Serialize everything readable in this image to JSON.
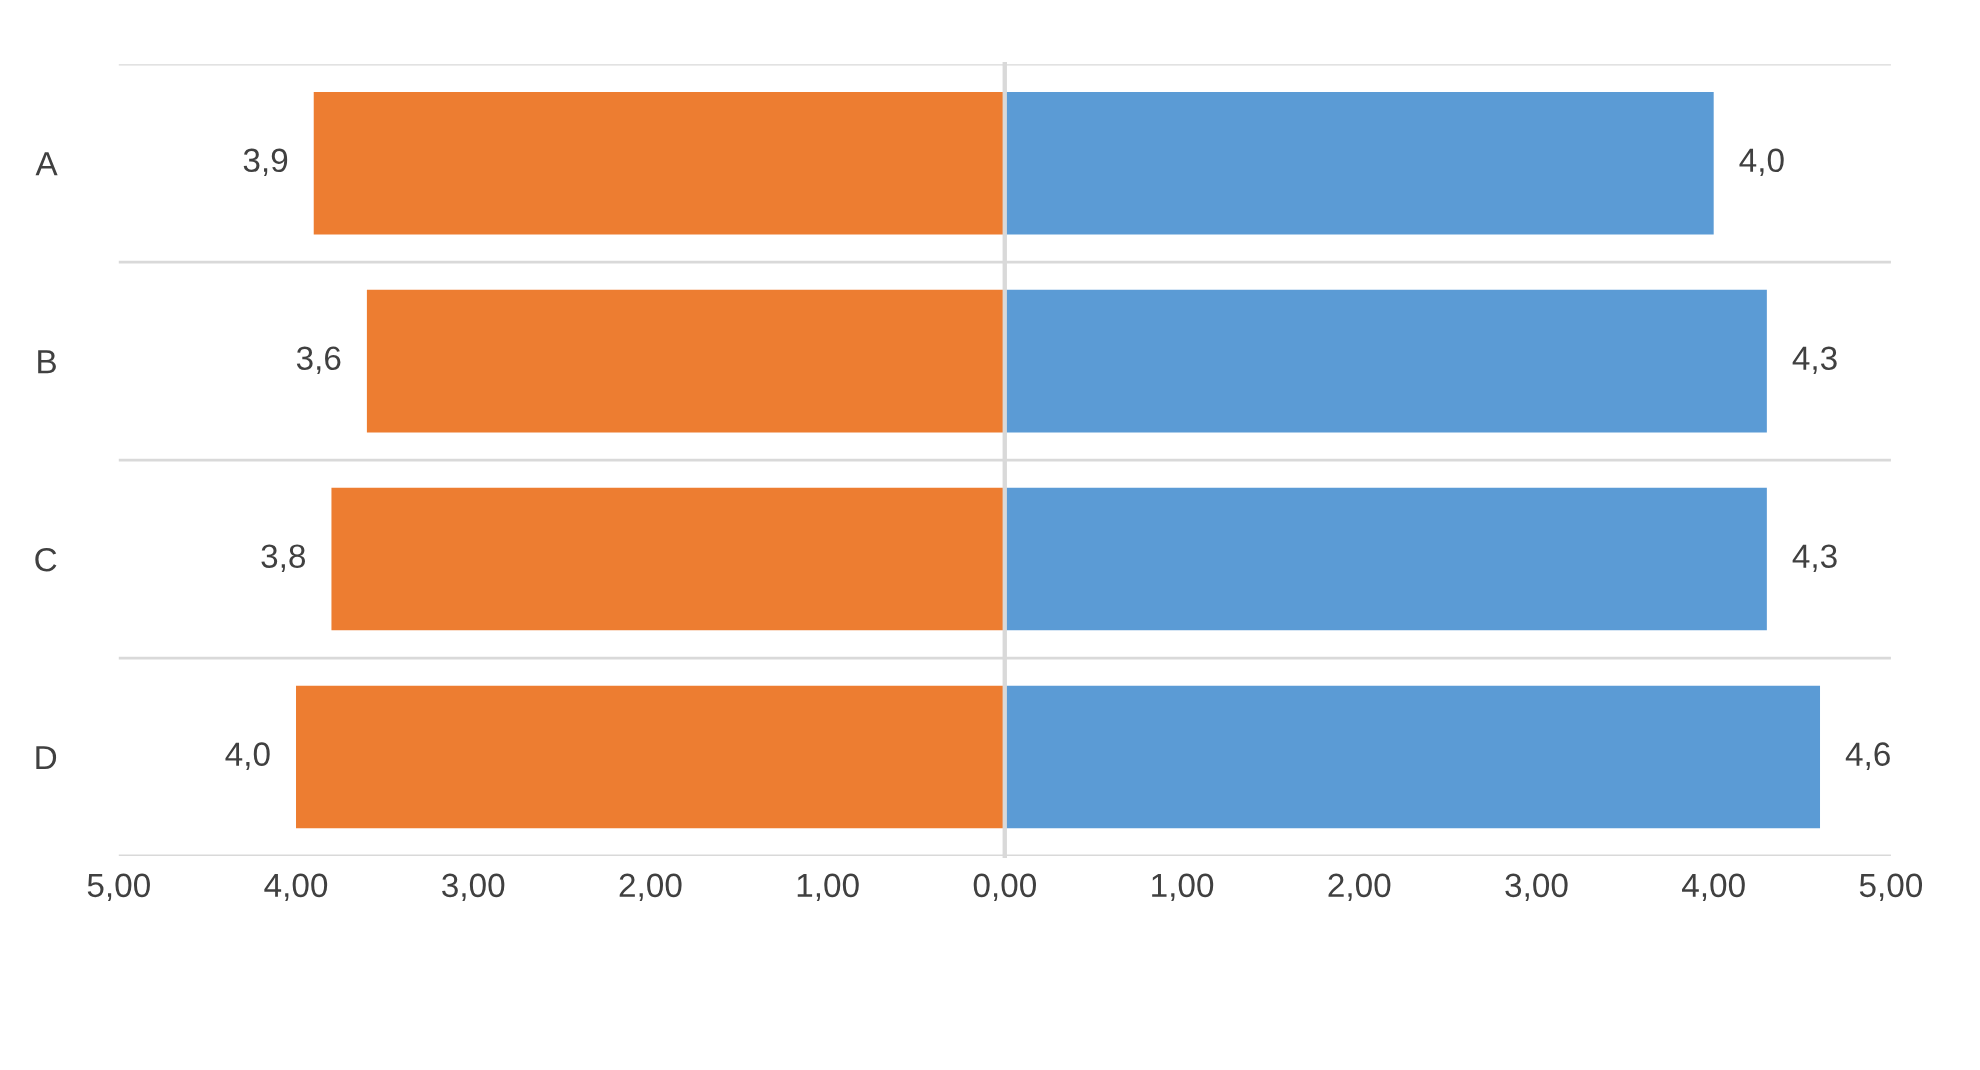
{
  "chart_data": [
    {
      "type": "bar",
      "orientation": "horizontal",
      "categories": [
        "A",
        "B",
        "C",
        "D"
      ],
      "series": [
        {
          "color": "#ed7d31",
          "values": [
            3.9,
            3.6,
            3.8,
            4.0
          ],
          "value_labels": [
            "3,9",
            "3,6",
            "3,8",
            "4,0"
          ]
        }
      ],
      "xlim": [
        5,
        0
      ],
      "xticks": [
        {
          "value": 5,
          "label": "5,00"
        },
        {
          "value": 4,
          "label": "4,00"
        },
        {
          "value": 3,
          "label": "3,00"
        },
        {
          "value": 2,
          "label": "2,00"
        },
        {
          "value": 1,
          "label": "1,00"
        },
        {
          "value": 0,
          "label": "0,00"
        }
      ],
      "grid": "y"
    },
    {
      "type": "bar",
      "orientation": "horizontal",
      "categories": [
        null,
        null,
        null,
        null
      ],
      "tick_labels": "x",
      "series": [
        {
          "color": "#5b9bd5",
          "values": [
            4.0,
            4.3,
            4.3,
            4.6
          ],
          "value_labels": [
            "4,0",
            "4,3",
            "4,3",
            "4,6"
          ]
        }
      ],
      "xlim": [
        0,
        5
      ],
      "xticks": [
        {
          "value": 1,
          "label": "1,00"
        },
        {
          "value": 2,
          "label": "2,00"
        },
        {
          "value": 3,
          "label": "3,00"
        },
        {
          "value": 4,
          "label": "4,00"
        },
        {
          "value": 5,
          "label": "5,00"
        }
      ],
      "grid": "y"
    }
  ]
}
